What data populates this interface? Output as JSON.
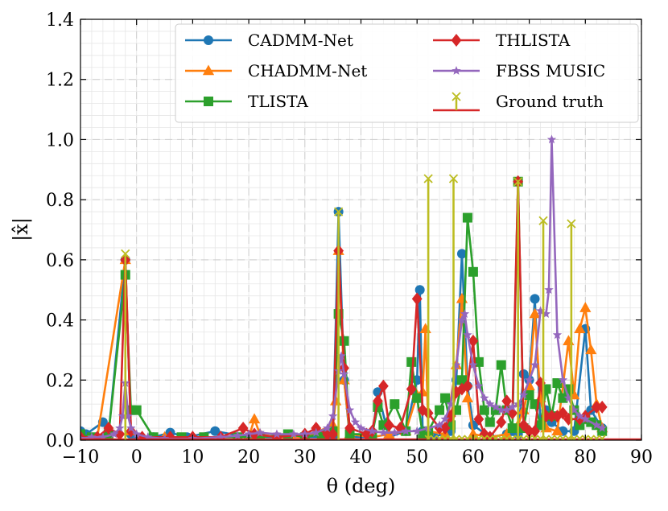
{
  "chart_data": {
    "type": "line",
    "xlabel": "θ (deg)",
    "ylabel": "|x̂|",
    "xlim": [
      -10,
      90
    ],
    "ylim": [
      0,
      1.4
    ],
    "xticks": [
      -10,
      0,
      10,
      20,
      30,
      40,
      50,
      60,
      70,
      80,
      90
    ],
    "xtick_labels": [
      "−10",
      "0",
      "10",
      "20",
      "30",
      "40",
      "50",
      "60",
      "70",
      "80",
      "90"
    ],
    "yticks": [
      0,
      0.2,
      0.4,
      0.6,
      0.8,
      1.0,
      1.2,
      1.4
    ],
    "ytick_labels": [
      "0.0",
      "0.2",
      "0.4",
      "0.6",
      "0.8",
      "1.0",
      "1.2",
      "1.4"
    ],
    "grid": "major dashed + minor solid",
    "legend_position": "top-right",
    "series": [
      {
        "name": "CADMM-Net",
        "color": "#1f77b4",
        "marker": "circle",
        "points": [
          [
            -10,
            0.03
          ],
          [
            -9,
            0.02
          ],
          [
            -6,
            0.06
          ],
          [
            -5,
            0.02
          ],
          [
            -2,
            0.6
          ],
          [
            -1,
            0.02
          ],
          [
            0,
            0.01
          ],
          [
            3,
            0.01
          ],
          [
            6,
            0.025
          ],
          [
            9,
            0.01
          ],
          [
            14,
            0.03
          ],
          [
            20,
            0.01
          ],
          [
            25,
            0.01
          ],
          [
            30,
            0.01
          ],
          [
            35,
            0.01
          ],
          [
            36,
            0.76
          ],
          [
            37,
            0.2
          ],
          [
            38,
            0.01
          ],
          [
            42,
            0.01
          ],
          [
            43,
            0.16
          ],
          [
            45,
            0.01
          ],
          [
            48,
            0.03
          ],
          [
            50,
            0.2
          ],
          [
            50.5,
            0.5
          ],
          [
            51,
            0.03
          ],
          [
            53,
            0.01
          ],
          [
            56,
            0.03
          ],
          [
            57,
            0.2
          ],
          [
            58,
            0.62
          ],
          [
            59,
            0.18
          ],
          [
            60,
            0.05
          ],
          [
            63,
            0.01
          ],
          [
            66,
            0.02
          ],
          [
            67,
            0.03
          ],
          [
            68,
            0.02
          ],
          [
            69,
            0.22
          ],
          [
            70,
            0.2
          ],
          [
            71,
            0.47
          ],
          [
            72,
            0.05
          ],
          [
            73,
            0.1
          ],
          [
            74,
            0.06
          ],
          [
            76,
            0.03
          ],
          [
            78,
            0.03
          ],
          [
            80,
            0.37
          ],
          [
            81,
            0.1
          ],
          [
            83,
            0.04
          ]
        ]
      },
      {
        "name": "CHADMM-Net",
        "color": "#ff7f0e",
        "marker": "triangle",
        "points": [
          [
            -10,
            0.01
          ],
          [
            -7,
            0.01
          ],
          [
            -2,
            0.6
          ],
          [
            -1,
            0.03
          ],
          [
            1,
            0.01
          ],
          [
            5,
            0.01
          ],
          [
            10,
            0.01
          ],
          [
            15,
            0.01
          ],
          [
            20,
            0.01
          ],
          [
            21,
            0.07
          ],
          [
            22,
            0.02
          ],
          [
            25,
            0.01
          ],
          [
            30,
            0.01
          ],
          [
            35,
            0.05
          ],
          [
            35.5,
            0.13
          ],
          [
            36,
            0.63
          ],
          [
            37,
            0.2
          ],
          [
            38,
            0.02
          ],
          [
            42,
            0.01
          ],
          [
            45,
            0.02
          ],
          [
            48,
            0.03
          ],
          [
            50,
            0.15
          ],
          [
            51,
            0.16
          ],
          [
            51.5,
            0.37
          ],
          [
            52,
            0.03
          ],
          [
            55,
            0.02
          ],
          [
            57,
            0.25
          ],
          [
            58,
            0.47
          ],
          [
            59,
            0.14
          ],
          [
            60,
            0.02
          ],
          [
            63,
            0.01
          ],
          [
            66,
            0.02
          ],
          [
            68,
            0.05
          ],
          [
            69,
            0.1
          ],
          [
            70,
            0.18
          ],
          [
            71,
            0.42
          ],
          [
            72,
            0.14
          ],
          [
            73,
            0.04
          ],
          [
            75,
            0.03
          ],
          [
            77,
            0.33
          ],
          [
            78,
            0.15
          ],
          [
            79,
            0.37
          ],
          [
            80,
            0.44
          ],
          [
            81,
            0.3
          ],
          [
            82,
            0.12
          ],
          [
            83,
            0.04
          ]
        ]
      },
      {
        "name": "TLISTA",
        "color": "#2ca02c",
        "marker": "square",
        "points": [
          [
            -10,
            0.02
          ],
          [
            -8,
            0.01
          ],
          [
            -5,
            0.02
          ],
          [
            -2,
            0.55
          ],
          [
            -1,
            0.1
          ],
          [
            0,
            0.1
          ],
          [
            3,
            0.01
          ],
          [
            8,
            0.01
          ],
          [
            12,
            0.01
          ],
          [
            18,
            0.01
          ],
          [
            22,
            0.01
          ],
          [
            27,
            0.02
          ],
          [
            30,
            0.01
          ],
          [
            33,
            0.02
          ],
          [
            35,
            0.03
          ],
          [
            36,
            0.42
          ],
          [
            37,
            0.33
          ],
          [
            38,
            0.02
          ],
          [
            42,
            0.02
          ],
          [
            43,
            0.11
          ],
          [
            44,
            0.05
          ],
          [
            46,
            0.12
          ],
          [
            48,
            0.03
          ],
          [
            49,
            0.26
          ],
          [
            50,
            0.14
          ],
          [
            51,
            0.02
          ],
          [
            52,
            0.03
          ],
          [
            54,
            0.1
          ],
          [
            55,
            0.14
          ],
          [
            56,
            0.05
          ],
          [
            57,
            0.1
          ],
          [
            58,
            0.2
          ],
          [
            59,
            0.74
          ],
          [
            60,
            0.56
          ],
          [
            61,
            0.26
          ],
          [
            62,
            0.1
          ],
          [
            63,
            0.06
          ],
          [
            64,
            0.1
          ],
          [
            65,
            0.25
          ],
          [
            66,
            0.1
          ],
          [
            67,
            0.04
          ],
          [
            68,
            0.86
          ],
          [
            69,
            0.04
          ],
          [
            70,
            0.15
          ],
          [
            71,
            0.12
          ],
          [
            72,
            0.05
          ],
          [
            73,
            0.17
          ],
          [
            74,
            0.08
          ],
          [
            75,
            0.19
          ],
          [
            76,
            0.14
          ],
          [
            77,
            0.17
          ],
          [
            78,
            0.1
          ],
          [
            79,
            0.05
          ],
          [
            80,
            0.07
          ],
          [
            81,
            0.06
          ],
          [
            82,
            0.05
          ],
          [
            83,
            0.03
          ]
        ]
      },
      {
        "name": "THLISTA",
        "color": "#d62728",
        "marker": "diamond",
        "points": [
          [
            -10,
            0.01
          ],
          [
            -7,
            0.01
          ],
          [
            -5,
            0.04
          ],
          [
            -3,
            0.02
          ],
          [
            -2,
            0.6
          ],
          [
            -1,
            0.03
          ],
          [
            1,
            0.01
          ],
          [
            6,
            0.01
          ],
          [
            10,
            0.01
          ],
          [
            15,
            0.01
          ],
          [
            19,
            0.04
          ],
          [
            21,
            0.02
          ],
          [
            25,
            0.01
          ],
          [
            30,
            0.02
          ],
          [
            32,
            0.04
          ],
          [
            34,
            0.02
          ],
          [
            35,
            0.02
          ],
          [
            36,
            0.63
          ],
          [
            37,
            0.24
          ],
          [
            38,
            0.04
          ],
          [
            41,
            0.02
          ],
          [
            42,
            0.03
          ],
          [
            43,
            0.13
          ],
          [
            44,
            0.18
          ],
          [
            45,
            0.05
          ],
          [
            47,
            0.04
          ],
          [
            49,
            0.17
          ],
          [
            50,
            0.47
          ],
          [
            51,
            0.1
          ],
          [
            52,
            0.09
          ],
          [
            54,
            0.04
          ],
          [
            55,
            0.04
          ],
          [
            56,
            0.08
          ],
          [
            57,
            0.16
          ],
          [
            58,
            0.17
          ],
          [
            59,
            0.18
          ],
          [
            60,
            0.33
          ],
          [
            61,
            0.07
          ],
          [
            62,
            0.02
          ],
          [
            63,
            0.01
          ],
          [
            65,
            0.06
          ],
          [
            66,
            0.13
          ],
          [
            67,
            0.09
          ],
          [
            68,
            0.86
          ],
          [
            69,
            0.05
          ],
          [
            70,
            0.03
          ],
          [
            71,
            0.03
          ],
          [
            72,
            0.19
          ],
          [
            73,
            0.08
          ],
          [
            74,
            0.08
          ],
          [
            75,
            0.08
          ],
          [
            76,
            0.09
          ],
          [
            77,
            0.07
          ],
          [
            79,
            0.07
          ],
          [
            80,
            0.08
          ],
          [
            82,
            0.11
          ],
          [
            83,
            0.11
          ]
        ]
      },
      {
        "name": "FBSS MUSIC",
        "color": "#9467bd",
        "marker": "star",
        "points": [
          [
            -10,
            0.005
          ],
          [
            -8,
            0.01
          ],
          [
            -6,
            0.01
          ],
          [
            -4,
            0.02
          ],
          [
            -3,
            0.04
          ],
          [
            -2.5,
            0.08
          ],
          [
            -2,
            0.19
          ],
          [
            -1.5,
            0.08
          ],
          [
            -1,
            0.04
          ],
          [
            0,
            0.02
          ],
          [
            2,
            0.01
          ],
          [
            5,
            0.005
          ],
          [
            10,
            0.005
          ],
          [
            15,
            0.01
          ],
          [
            18,
            0.015
          ],
          [
            20,
            0.02
          ],
          [
            22,
            0.025
          ],
          [
            25,
            0.02
          ],
          [
            28,
            0.02
          ],
          [
            30,
            0.02
          ],
          [
            32,
            0.025
          ],
          [
            34,
            0.04
          ],
          [
            35,
            0.08
          ],
          [
            36,
            0.23
          ],
          [
            36.5,
            0.28
          ],
          [
            37,
            0.22
          ],
          [
            38,
            0.1
          ],
          [
            39,
            0.06
          ],
          [
            40,
            0.04
          ],
          [
            42,
            0.03
          ],
          [
            44,
            0.025
          ],
          [
            46,
            0.025
          ],
          [
            48,
            0.03
          ],
          [
            50,
            0.03
          ],
          [
            52,
            0.04
          ],
          [
            54,
            0.05
          ],
          [
            55,
            0.07
          ],
          [
            56,
            0.12
          ],
          [
            57,
            0.25
          ],
          [
            58,
            0.4
          ],
          [
            58.5,
            0.42
          ],
          [
            59,
            0.35
          ],
          [
            60,
            0.25
          ],
          [
            61,
            0.18
          ],
          [
            62,
            0.14
          ],
          [
            63,
            0.12
          ],
          [
            64,
            0.11
          ],
          [
            65,
            0.1
          ],
          [
            66,
            0.1
          ],
          [
            67,
            0.11
          ],
          [
            68,
            0.12
          ],
          [
            69,
            0.15
          ],
          [
            70,
            0.2
          ],
          [
            71,
            0.25
          ],
          [
            72,
            0.43
          ],
          [
            73,
            0.42
          ],
          [
            73.5,
            0.5
          ],
          [
            74,
            1.0
          ],
          [
            75,
            0.35
          ],
          [
            76,
            0.2
          ],
          [
            77,
            0.14
          ],
          [
            78,
            0.1
          ],
          [
            79,
            0.08
          ],
          [
            80,
            0.07
          ],
          [
            82,
            0.05
          ],
          [
            83,
            0.04
          ]
        ]
      }
    ],
    "ground_truth": {
      "name": "Ground truth",
      "color": "#bcbd22",
      "stem_color": "#d62728",
      "points": [
        [
          -2,
          0.62
        ],
        [
          36,
          0.76
        ],
        [
          52,
          0.87
        ],
        [
          56.5,
          0.87
        ],
        [
          68,
          0.86
        ],
        [
          72.5,
          0.73
        ],
        [
          77.5,
          0.72
        ]
      ],
      "baseline_marks": [
        52,
        53,
        54,
        55,
        56,
        57,
        58,
        59,
        60,
        61,
        62,
        63,
        64,
        65,
        66,
        67,
        68,
        69,
        70,
        71,
        72,
        73,
        74,
        75,
        76,
        77,
        78,
        79,
        80,
        81,
        82,
        83
      ]
    }
  }
}
